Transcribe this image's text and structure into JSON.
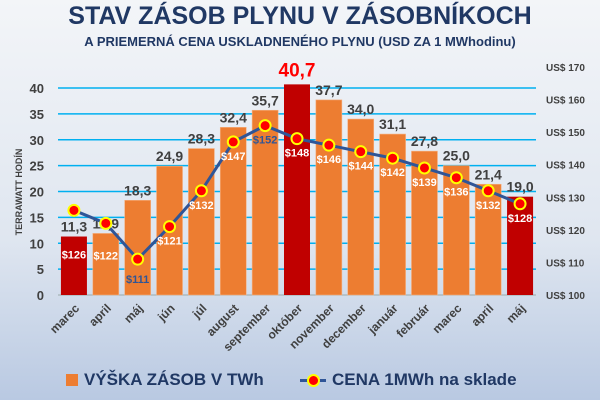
{
  "chart_data": {
    "type": "bar+line",
    "title": "STAV ZÁSOB PLYNU V ZÁSOBNÍKOCH",
    "subtitle": "A PRIEMERNÁ CENA USKLADNENÉHO PLYNU (USD ZA 1 MWhodinu)",
    "ylabel": "TERRAWATT HODÍN",
    "categories": [
      "marec",
      "april",
      "máj",
      "jún",
      "júl",
      "august",
      "september",
      "október",
      "november",
      "december",
      "január",
      "február",
      "marec",
      "april",
      "máj"
    ],
    "ylim": [
      0,
      40
    ],
    "yticks": [
      0,
      5,
      10,
      15,
      20,
      25,
      30,
      35,
      40
    ],
    "y2lim": [
      100,
      170
    ],
    "y2ticks": [
      "US$ 100",
      "US$ 110",
      "US$ 120",
      "US$ 130",
      "US$ 140",
      "US$ 150",
      "US$ 160",
      "US$ 170"
    ],
    "grid": true,
    "series": [
      {
        "name": "VÝŠKA ZÁSOB V TWh",
        "kind": "bar",
        "axis": "left",
        "values": [
          11.3,
          11.9,
          18.3,
          24.9,
          28.3,
          32.4,
          35.7,
          40.7,
          37.7,
          34.0,
          31.1,
          27.8,
          25.0,
          21.4,
          19.0
        ],
        "labels": [
          "11,3",
          "11,9",
          "18,3",
          "24,9",
          "28,3",
          "32,4",
          "35,7",
          "40,7",
          "37,7",
          "34,0",
          "31,1",
          "27,8",
          "25,0",
          "21,4",
          "19,0"
        ],
        "highlighted": [
          0,
          7,
          14
        ]
      },
      {
        "name": "CENA 1MWh na sklade",
        "kind": "line",
        "axis": "right",
        "values": [
          126,
          122,
          111,
          121,
          132,
          147,
          152,
          148,
          146,
          144,
          142,
          139,
          136,
          132,
          128
        ],
        "labels": [
          "$126",
          "$122",
          "$111",
          "$121",
          "$132",
          "$147",
          "$152",
          "$148",
          "$146",
          "$144",
          "$142",
          "$139",
          "$136",
          "$132",
          "$128"
        ]
      }
    ],
    "legend_position": "bottom",
    "colors": {
      "bar": "#ed7d31",
      "bar_highlight": "#c00000",
      "line": "#2f5597",
      "marker": "#ff0000",
      "marker_edge": "#ffff00",
      "grid": "#00b0f0",
      "title": "#203864",
      "peak_label": "#ff0000"
    }
  }
}
